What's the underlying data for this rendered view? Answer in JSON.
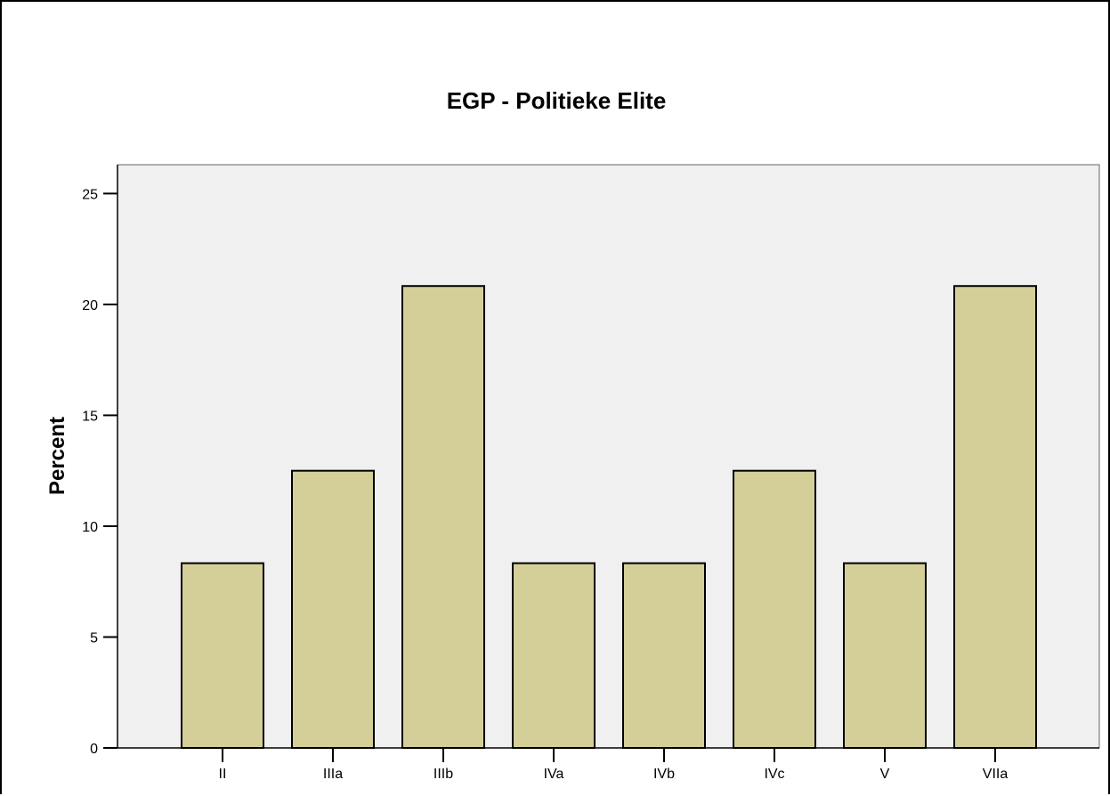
{
  "chart_data": {
    "type": "bar",
    "title": "EGP - Politieke Elite",
    "xlabel": "",
    "ylabel": "Percent",
    "categories": [
      "II",
      "IIIa",
      "IIIb",
      "IVa",
      "IVb",
      "IVc",
      "V",
      "VIIa"
    ],
    "values": [
      8.33,
      12.5,
      20.83,
      8.33,
      8.33,
      12.5,
      8.33,
      20.83
    ],
    "ylim": [
      0,
      26.3
    ],
    "yticks": [
      "0",
      "5",
      "10",
      "15",
      "20",
      "25"
    ],
    "grid": false,
    "legend": "none",
    "colors": {
      "bar_fill": "#d4cf98",
      "bar_stroke": "#000000",
      "plot_background": "#f0f0f0"
    }
  }
}
